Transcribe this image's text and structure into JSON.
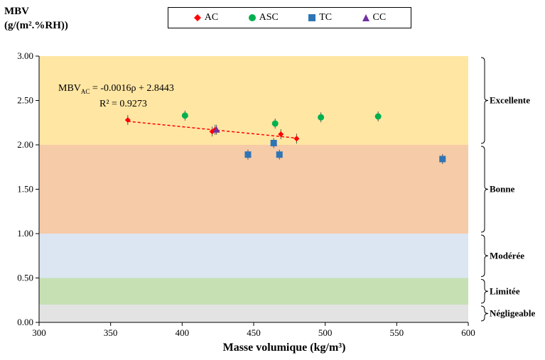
{
  "chart_data": {
    "type": "scatter",
    "title": "",
    "ylabel_line1": "MBV",
    "ylabel_line2": "(g/(m².%RH))",
    "xlabel": "Masse volumique (kg/m³)",
    "xlim": [
      300,
      600
    ],
    "ylim": [
      0,
      3
    ],
    "x_ticks": [
      "300",
      "350",
      "400",
      "450",
      "500",
      "550",
      "600"
    ],
    "y_ticks": [
      "0.00",
      "0.50",
      "1.00",
      "1.50",
      "2.00",
      "2.50",
      "3.00"
    ],
    "grid": false,
    "legend_position": "top",
    "bands": [
      {
        "name": "Excellente",
        "from": 2.0,
        "to": 3.0,
        "color": "#FFE6A3"
      },
      {
        "name": "Bonne",
        "from": 1.0,
        "to": 2.0,
        "color": "#F6CBA8"
      },
      {
        "name": "Modérée",
        "from": 0.5,
        "to": 1.0,
        "color": "#DCE6F2"
      },
      {
        "name": "Limitée",
        "from": 0.2,
        "to": 0.5,
        "color": "#C6E0B4"
      },
      {
        "name": "Négligeable",
        "from": 0.0,
        "to": 0.2,
        "color": "#E3E3E3"
      }
    ],
    "series": [
      {
        "name": "AC",
        "marker": "diamond",
        "color": "#FF0000",
        "x": [
          362,
          421,
          423,
          469,
          480
        ],
        "y": [
          2.28,
          2.15,
          2.17,
          2.12,
          2.07
        ]
      },
      {
        "name": "ASC",
        "marker": "circle",
        "color": "#00B050",
        "x": [
          402,
          465,
          497,
          537
        ],
        "y": [
          2.33,
          2.24,
          2.31,
          2.32
        ]
      },
      {
        "name": "TC",
        "marker": "square",
        "color": "#2E75B6",
        "x": [
          446,
          464,
          468,
          582
        ],
        "y": [
          1.89,
          2.02,
          1.89,
          1.84
        ]
      },
      {
        "name": "CC",
        "marker": "triangle",
        "color": "#7030A0",
        "x": [
          424
        ],
        "y": [
          2.17
        ]
      }
    ],
    "trendline": {
      "series": "AC",
      "slope": -0.0016,
      "intercept": 2.8443,
      "x_range": [
        362,
        480
      ],
      "color": "#FF0000"
    },
    "equation_prefix": "MBV",
    "equation_sub": "AC",
    "equation_rest": " = -0.0016ρ + 2.8443",
    "r2_text": "R² = 0.9273"
  }
}
